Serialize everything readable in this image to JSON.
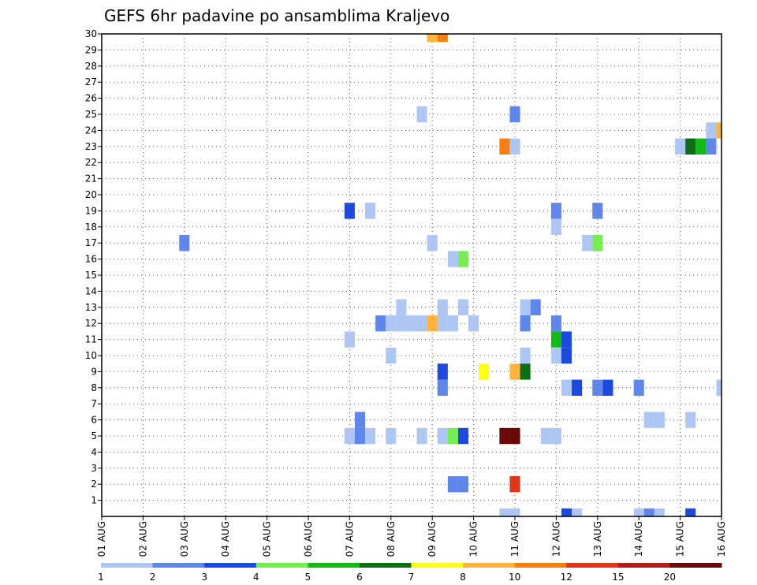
{
  "chart_data": {
    "type": "heatmap",
    "title": "GEFS 6hr padavine po ansamblima Kraljevo",
    "x_tick_labels": [
      "01 AUG",
      "02 AUG",
      "03 AUG",
      "04 AUG",
      "05 AUG",
      "06 AUG",
      "07 AUG",
      "08 AUG",
      "09 AUG",
      "10 AUG",
      "11 AUG",
      "12 AUG",
      "13 AUG",
      "14 AUG",
      "15 AUG",
      "16 AUG"
    ],
    "x_range_days": [
      1,
      16
    ],
    "step_hours": 6,
    "y_tick_labels": [
      "1",
      "2",
      "3",
      "4",
      "5",
      "6",
      "7",
      "8",
      "9",
      "10",
      "11",
      "12",
      "13",
      "14",
      "15",
      "16",
      "17",
      "18",
      "19",
      "20",
      "21",
      "22",
      "23",
      "24",
      "25",
      "26",
      "27",
      "28",
      "29",
      "30"
    ],
    "y_range": [
      0,
      30
    ],
    "grid": "dotted",
    "colorbar": {
      "labels": [
        "1",
        "2",
        "3",
        "4",
        "5",
        "6",
        "7",
        "8",
        "10",
        "12",
        "15",
        "20"
      ],
      "colors": [
        "#aec6f4",
        "#5f86ea",
        "#1c4ae0",
        "#74ee50",
        "#12bb14",
        "#0e6e14",
        "#ffff14",
        "#ffb33c",
        "#f77f12",
        "#e0351a",
        "#b21e1c",
        "#6b0808"
      ]
    },
    "cells": [
      {
        "x": 9.0,
        "y": 30,
        "c": 7
      },
      {
        "x": 9.25,
        "y": 30,
        "c": 8
      },
      {
        "x": 8.75,
        "y": 25,
        "c": 0
      },
      {
        "x": 11.0,
        "y": 25,
        "c": 1
      },
      {
        "x": 15.75,
        "y": 24,
        "c": 0
      },
      {
        "x": 16.0,
        "y": 24,
        "c": 7
      },
      {
        "x": 10.75,
        "y": 23,
        "c": 8
      },
      {
        "x": 11.0,
        "y": 23,
        "c": 0
      },
      {
        "x": 15.0,
        "y": 23,
        "c": 0
      },
      {
        "x": 15.25,
        "y": 23,
        "c": 5
      },
      {
        "x": 15.5,
        "y": 23,
        "c": 4
      },
      {
        "x": 15.75,
        "y": 23,
        "c": 1
      },
      {
        "x": 16.25,
        "y": 23,
        "c": 2
      },
      {
        "x": 16.25,
        "y": 20,
        "c": 2
      },
      {
        "x": 16.5,
        "y": 20,
        "c": 1
      },
      {
        "x": 7.0,
        "y": 19,
        "c": 2
      },
      {
        "x": 7.5,
        "y": 19,
        "c": 0
      },
      {
        "x": 12.0,
        "y": 19,
        "c": 1
      },
      {
        "x": 13.0,
        "y": 19,
        "c": 1
      },
      {
        "x": 12.0,
        "y": 18,
        "c": 0
      },
      {
        "x": 3.0,
        "y": 17,
        "c": 1
      },
      {
        "x": 9.0,
        "y": 17,
        "c": 0
      },
      {
        "x": 12.75,
        "y": 17,
        "c": 0
      },
      {
        "x": 13.0,
        "y": 17,
        "c": 3
      },
      {
        "x": 9.5,
        "y": 16,
        "c": 0
      },
      {
        "x": 9.75,
        "y": 16,
        "c": 3
      },
      {
        "x": 8.25,
        "y": 13,
        "c": 0
      },
      {
        "x": 9.25,
        "y": 13,
        "c": 0
      },
      {
        "x": 9.75,
        "y": 13,
        "c": 0
      },
      {
        "x": 11.25,
        "y": 13,
        "c": 0
      },
      {
        "x": 11.5,
        "y": 13,
        "c": 1
      },
      {
        "x": 7.75,
        "y": 12,
        "c": 1
      },
      {
        "x": 8.0,
        "y": 12,
        "c": 0
      },
      {
        "x": 8.25,
        "y": 12,
        "c": 0
      },
      {
        "x": 8.5,
        "y": 12,
        "c": 0
      },
      {
        "x": 8.75,
        "y": 12,
        "c": 0
      },
      {
        "x": 9.0,
        "y": 12,
        "c": 7
      },
      {
        "x": 9.25,
        "y": 12,
        "c": 0
      },
      {
        "x": 9.5,
        "y": 12,
        "c": 0
      },
      {
        "x": 10.0,
        "y": 12,
        "c": 0
      },
      {
        "x": 11.25,
        "y": 12,
        "c": 1
      },
      {
        "x": 12.0,
        "y": 12,
        "c": 1
      },
      {
        "x": 7.0,
        "y": 11,
        "c": 0
      },
      {
        "x": 12.0,
        "y": 11,
        "c": 4
      },
      {
        "x": 12.25,
        "y": 11,
        "c": 2
      },
      {
        "x": 8.0,
        "y": 10,
        "c": 0
      },
      {
        "x": 11.25,
        "y": 10,
        "c": 0
      },
      {
        "x": 12.0,
        "y": 10,
        "c": 0
      },
      {
        "x": 12.25,
        "y": 10,
        "c": 2
      },
      {
        "x": 16.25,
        "y": 10,
        "c": 0
      },
      {
        "x": 9.25,
        "y": 9,
        "c": 2
      },
      {
        "x": 10.25,
        "y": 9,
        "c": 6
      },
      {
        "x": 11.0,
        "y": 9,
        "c": 7
      },
      {
        "x": 11.25,
        "y": 9,
        "c": 5
      },
      {
        "x": 9.25,
        "y": 8,
        "c": 1
      },
      {
        "x": 12.25,
        "y": 8,
        "c": 0
      },
      {
        "x": 12.5,
        "y": 8,
        "c": 2
      },
      {
        "x": 13.0,
        "y": 8,
        "c": 1
      },
      {
        "x": 13.25,
        "y": 8,
        "c": 2
      },
      {
        "x": 14.0,
        "y": 8,
        "c": 1
      },
      {
        "x": 16.0,
        "y": 8,
        "c": 0
      },
      {
        "x": 16.5,
        "y": 8,
        "c": 0
      },
      {
        "x": 7.25,
        "y": 6,
        "c": 1
      },
      {
        "x": 14.25,
        "y": 6,
        "c": 0
      },
      {
        "x": 14.5,
        "y": 6,
        "c": 0
      },
      {
        "x": 15.25,
        "y": 6,
        "c": 0
      },
      {
        "x": 7.0,
        "y": 5,
        "c": 0
      },
      {
        "x": 7.25,
        "y": 5,
        "c": 1
      },
      {
        "x": 7.5,
        "y": 5,
        "c": 0
      },
      {
        "x": 8.0,
        "y": 5,
        "c": 0
      },
      {
        "x": 8.75,
        "y": 5,
        "c": 0
      },
      {
        "x": 9.25,
        "y": 5,
        "c": 0
      },
      {
        "x": 9.5,
        "y": 5,
        "c": 3
      },
      {
        "x": 9.75,
        "y": 5,
        "c": 2
      },
      {
        "x": 10.75,
        "y": 5,
        "c": 11
      },
      {
        "x": 11.0,
        "y": 5,
        "c": 11
      },
      {
        "x": 11.75,
        "y": 5,
        "c": 0
      },
      {
        "x": 12.0,
        "y": 5,
        "c": 0
      },
      {
        "x": 9.5,
        "y": 2,
        "c": 1
      },
      {
        "x": 9.75,
        "y": 2,
        "c": 1
      },
      {
        "x": 11.0,
        "y": 2,
        "c": 9
      },
      {
        "x": 10.75,
        "y": 0,
        "c": 0
      },
      {
        "x": 11.0,
        "y": 0,
        "c": 0
      },
      {
        "x": 12.25,
        "y": 0,
        "c": 2
      },
      {
        "x": 12.5,
        "y": 0,
        "c": 0
      },
      {
        "x": 14.0,
        "y": 0,
        "c": 0
      },
      {
        "x": 14.25,
        "y": 0,
        "c": 1
      },
      {
        "x": 14.5,
        "y": 0,
        "c": 0
      },
      {
        "x": 15.25,
        "y": 0,
        "c": 2
      }
    ]
  }
}
